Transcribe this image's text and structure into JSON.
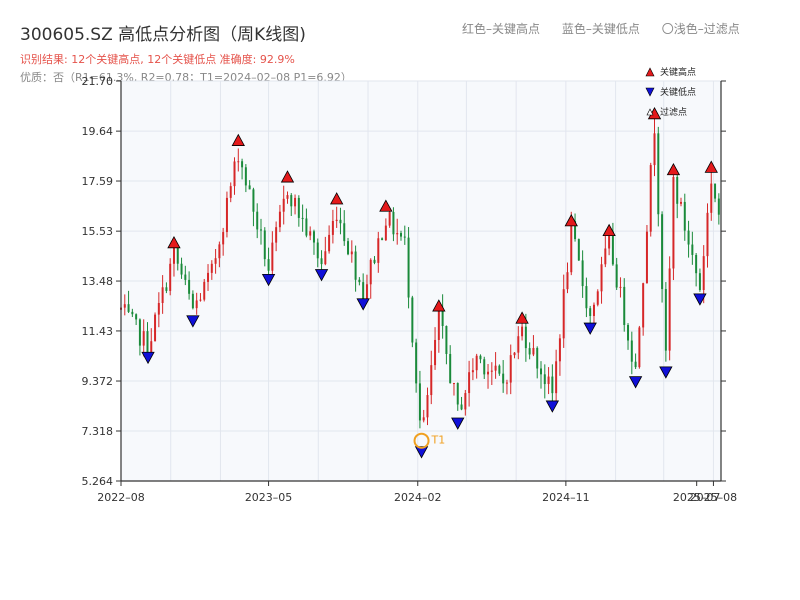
{
  "header": {
    "title": "300605.SZ 高低点分析图（周K线图)",
    "legend_high": "红色–关键高点",
    "legend_low": "蓝色–关键低点",
    "legend_filtered": "〇浅色–过滤点",
    "result_text": "识别结果: 12个关键高点, 12个关键低点   准确度: 92.9%",
    "quality_text": "优质：否（R1=61.3%, R2=0.78；T1=2024–02–08 P1=6.92）"
  },
  "colors": {
    "up": "#d62728",
    "down": "#1a8a3a",
    "high": "#e41a1c",
    "low": "#1010d8",
    "t1": "#f0a020",
    "plot_bg": "#f7f9fc"
  },
  "chart_data": {
    "type": "candlestick",
    "title": "300605.SZ 高低点分析图（周K线图)",
    "ylim": [
      5.264,
      21.7
    ],
    "yticks": [
      5.264,
      7.318,
      9.372,
      11.43,
      13.48,
      15.53,
      17.59,
      19.64,
      21.7
    ],
    "ytick_labels": [
      "5.264",
      "7.318",
      "9.372",
      "11.43",
      "13.48",
      "15.53",
      "17.59",
      "19.64",
      "21.70"
    ],
    "xlim": [
      "2022-08-01",
      "2025-08-15"
    ],
    "xticks": [
      "2022-08-01",
      "2023-05-01",
      "2024-02-01",
      "2024-11-01",
      "2025-07-01",
      "2025-08-01"
    ],
    "xtick_labels": [
      "2022–08",
      "2023–05",
      "2024–02",
      "2024–11",
      "2025–07",
      "2025–08"
    ],
    "grid": true,
    "legend": {
      "placement": "top-right",
      "entries": [
        "关键高点",
        "关键低点",
        "过滤点"
      ]
    },
    "anchors": [
      [
        "2022-08-01",
        12.3
      ],
      [
        "2022-09-20",
        10.8
      ],
      [
        "2022-11-07",
        14.6
      ],
      [
        "2022-12-12",
        12.3
      ],
      [
        "2023-01-16",
        13.8
      ],
      [
        "2023-03-06",
        18.8
      ],
      [
        "2023-05-01",
        14.0
      ],
      [
        "2023-06-05",
        17.3
      ],
      [
        "2023-08-07",
        14.2
      ],
      [
        "2023-09-04",
        16.4
      ],
      [
        "2023-10-23",
        13.0
      ],
      [
        "2023-12-04",
        16.1
      ],
      [
        "2024-01-08",
        15.0
      ],
      [
        "2024-02-08",
        6.92
      ],
      [
        "2024-03-11",
        12.0
      ],
      [
        "2024-04-15",
        8.1
      ],
      [
        "2024-05-20",
        10.4
      ],
      [
        "2024-07-08",
        9.3
      ],
      [
        "2024-08-12",
        11.5
      ],
      [
        "2024-10-07",
        8.8
      ],
      [
        "2024-11-11",
        15.5
      ],
      [
        "2024-12-16",
        12.0
      ],
      [
        "2025-01-20",
        15.1
      ],
      [
        "2025-03-10",
        9.8
      ],
      [
        "2025-04-14",
        19.9
      ],
      [
        "2025-05-05",
        10.2
      ],
      [
        "2025-05-19",
        17.6
      ],
      [
        "2025-07-07",
        13.2
      ],
      [
        "2025-07-28",
        17.7
      ],
      [
        "2025-08-11",
        16.2
      ]
    ],
    "highs": [
      {
        "date": "2022-11-07",
        "value": 14.6
      },
      {
        "date": "2023-03-06",
        "value": 18.8
      },
      {
        "date": "2023-06-05",
        "value": 17.3
      },
      {
        "date": "2023-09-04",
        "value": 16.4
      },
      {
        "date": "2023-12-04",
        "value": 16.1
      },
      {
        "date": "2024-03-11",
        "value": 12.0
      },
      {
        "date": "2024-08-12",
        "value": 11.5
      },
      {
        "date": "2024-11-11",
        "value": 15.5
      },
      {
        "date": "2025-01-20",
        "value": 15.1
      },
      {
        "date": "2025-04-14",
        "value": 19.9
      },
      {
        "date": "2025-05-19",
        "value": 17.6
      },
      {
        "date": "2025-07-28",
        "value": 17.7
      }
    ],
    "lows": [
      {
        "date": "2022-09-20",
        "value": 10.8
      },
      {
        "date": "2022-12-12",
        "value": 12.3
      },
      {
        "date": "2023-05-01",
        "value": 14.0
      },
      {
        "date": "2023-08-07",
        "value": 14.2
      },
      {
        "date": "2023-10-23",
        "value": 13.0
      },
      {
        "date": "2024-02-08",
        "value": 6.92
      },
      {
        "date": "2024-04-15",
        "value": 8.1
      },
      {
        "date": "2024-10-07",
        "value": 8.8
      },
      {
        "date": "2024-12-16",
        "value": 12.0
      },
      {
        "date": "2025-03-10",
        "value": 9.8
      },
      {
        "date": "2025-05-05",
        "value": 10.2
      },
      {
        "date": "2025-07-07",
        "value": 13.2
      }
    ],
    "t1": {
      "date": "2024-02-08",
      "value": 6.92,
      "label": "T1"
    }
  }
}
